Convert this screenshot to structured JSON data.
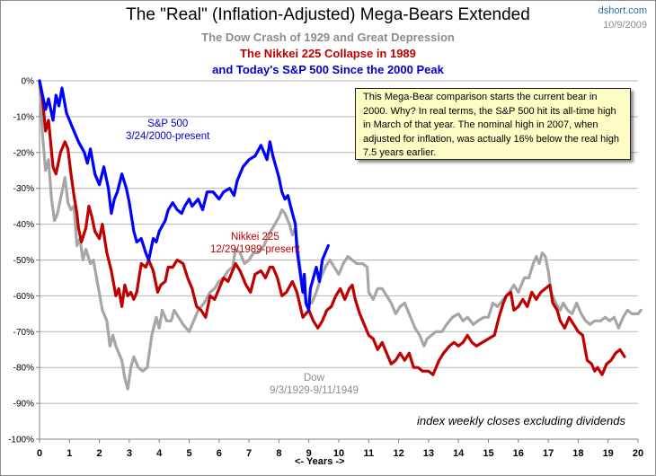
{
  "header": {
    "title": "The \"Real\" (Inflation-Adjusted)  Mega-Bears  Extended",
    "subtitle_dow": "The Dow Crash of 1929 and Great Depression",
    "subtitle_nikkei": "The Nikkei 225  Collapse in 1989",
    "subtitle_sp": "and Today's S&P 500  Since the 2000  Peak",
    "site": "dshort.com",
    "date": "10/9/2009"
  },
  "note": "This Mega-Bear comparison starts  the current bear in 2000.  Why? In real terms, the S&P 500 hit its all-time high in March of that year. The nominal high in 2007, when adjusted for inflation, was actually 16% below the real high 7.5 years earlier.",
  "footnote": "index weekly closes excluding dividends",
  "series_labels": {
    "sp": {
      "name": "S&P 500",
      "range": "3/24/2000-present"
    },
    "nikkei": {
      "name": "Nikkei 225",
      "range": "12/29/1989-present"
    },
    "dow": {
      "name": "Dow",
      "range": "9/3/1929-9/11/1949"
    }
  },
  "chart_data": {
    "type": "line",
    "title": "The \"Real\" (Inflation-Adjusted) Mega-Bears Extended",
    "xlabel": "<- Years ->",
    "ylabel": "",
    "xlim": [
      0,
      20
    ],
    "ylim": [
      -100,
      0
    ],
    "x_ticks": [
      "0",
      "1",
      "2",
      "3",
      "4",
      "5",
      "6",
      "7",
      "8",
      "9",
      "10",
      "11",
      "12",
      "13",
      "14",
      "15",
      "16",
      "17",
      "18",
      "19",
      "20"
    ],
    "y_ticks": [
      "0%",
      "-10%",
      "-20%",
      "-30%",
      "-40%",
      "-50%",
      "-60%",
      "-70%",
      "-80%",
      "-90%",
      "-100%"
    ],
    "grid": true,
    "legend": "none (inline labels)",
    "series": [
      {
        "name": "Dow 9/3/1929-9/11/1949",
        "color": "#a6a6a6",
        "x": [
          0,
          0.1,
          0.2,
          0.3,
          0.4,
          0.5,
          0.6,
          0.75,
          0.85,
          0.95,
          1.05,
          1.15,
          1.25,
          1.35,
          1.45,
          1.55,
          1.7,
          1.8,
          1.95,
          2.1,
          2.25,
          2.35,
          2.45,
          2.55,
          2.65,
          2.75,
          2.85,
          2.95,
          3.05,
          3.15,
          3.3,
          3.45,
          3.6,
          3.75,
          3.9,
          4.0,
          4.1,
          4.25,
          4.4,
          4.5,
          4.65,
          4.8,
          5.0,
          5.15,
          5.3,
          5.5,
          5.7,
          5.85,
          6.0,
          6.15,
          6.3,
          6.45,
          6.55,
          6.7,
          6.85,
          7.0,
          7.15,
          7.3,
          7.5,
          7.65,
          7.8,
          8.0,
          8.1,
          8.2,
          8.35,
          8.45,
          8.55,
          8.65,
          8.8,
          8.95,
          9.1,
          9.25,
          9.4,
          9.55,
          9.7,
          9.85,
          10.0,
          10.15,
          10.3,
          10.45,
          10.6,
          10.8,
          10.95,
          11.0,
          11.15,
          11.3,
          11.45,
          11.6,
          11.75,
          11.9,
          12.05,
          12.2,
          12.35,
          12.55,
          12.7,
          12.85,
          12.95,
          13.1,
          13.25,
          13.45,
          13.6,
          13.8,
          14.0,
          14.15,
          14.3,
          14.5,
          14.65,
          14.85,
          15.0,
          15.15,
          15.3,
          15.5,
          15.7,
          15.85,
          16.0,
          16.2,
          16.35,
          16.5,
          16.6,
          16.7,
          16.8,
          16.9,
          17.0,
          17.1,
          17.25,
          17.4,
          17.5,
          17.65,
          17.8,
          17.95,
          18.1,
          18.25,
          18.4,
          18.55,
          18.75,
          18.9,
          19.05,
          19.2,
          19.35,
          19.5,
          19.65,
          19.8,
          20.0,
          20.1
        ],
        "values": [
          0,
          -15,
          -25,
          -22,
          -33,
          -39,
          -37,
          -31,
          -27,
          -34,
          -36,
          -35,
          -46,
          -44,
          -50,
          -47,
          -51,
          -50,
          -57,
          -64,
          -67,
          -74,
          -71,
          -74,
          -76,
          -78,
          -83,
          -86,
          -80,
          -77,
          -80,
          -81,
          -80,
          -71,
          -66,
          -69,
          -64,
          -67,
          -67,
          -64,
          -66,
          -68,
          -70,
          -67,
          -64,
          -62,
          -59,
          -58,
          -56,
          -55,
          -53,
          -52,
          -47,
          -48,
          -51,
          -50,
          -48,
          -48,
          -46,
          -43,
          -41,
          -38,
          -36,
          -37,
          -40,
          -43,
          -41,
          -48,
          -58,
          -62,
          -62,
          -59,
          -55,
          -52,
          -50,
          -52,
          -54,
          -51,
          -49,
          -50,
          -51,
          -51,
          -52,
          -59,
          -61,
          -58,
          -58,
          -60,
          -62,
          -65,
          -63,
          -62,
          -65,
          -69,
          -71,
          -74,
          -72,
          -71,
          -70,
          -70,
          -68,
          -66,
          -65,
          -67,
          -66,
          -68,
          -67,
          -66,
          -66,
          -62,
          -63,
          -61,
          -59,
          -57,
          -59,
          -55,
          -55,
          -51,
          -49,
          -51,
          -48,
          -49,
          -53,
          -59,
          -62,
          -64,
          -62,
          -64,
          -65,
          -62,
          -65,
          -67,
          -68,
          -67,
          -67,
          -66,
          -67,
          -66,
          -69,
          -66,
          -64,
          -65,
          -65,
          -64
        ]
      },
      {
        "name": "Nikkei 225 12/29/1989-present",
        "color": "#c00000",
        "x": [
          0,
          0.1,
          0.2,
          0.3,
          0.45,
          0.55,
          0.7,
          0.85,
          0.95,
          1.05,
          1.15,
          1.25,
          1.3,
          1.4,
          1.55,
          1.65,
          1.75,
          1.85,
          2.0,
          2.1,
          2.25,
          2.4,
          2.55,
          2.65,
          2.75,
          2.85,
          2.95,
          3.05,
          3.15,
          3.25,
          3.4,
          3.55,
          3.65,
          3.8,
          3.95,
          4.05,
          4.2,
          4.3,
          4.45,
          4.6,
          4.8,
          4.95,
          5.1,
          5.25,
          5.4,
          5.55,
          5.7,
          5.85,
          6.0,
          6.15,
          6.3,
          6.45,
          6.55,
          6.7,
          6.9,
          7.05,
          7.2,
          7.4,
          7.55,
          7.7,
          7.8,
          7.95,
          8.1,
          8.25,
          8.45,
          8.6,
          8.8,
          9.0,
          9.15,
          9.3,
          9.45,
          9.6,
          9.75,
          9.9,
          10.05,
          10.2,
          10.35,
          10.45,
          10.55,
          10.7,
          10.85,
          11.0,
          11.15,
          11.3,
          11.45,
          11.6,
          11.75,
          11.9,
          12.05,
          12.2,
          12.35,
          12.5,
          12.65,
          12.8,
          13.0,
          13.15,
          13.35,
          13.5,
          13.7,
          13.85,
          14.0,
          14.15,
          14.3,
          14.45,
          14.6,
          14.8,
          15.0,
          15.2,
          15.35,
          15.5,
          15.6,
          15.75,
          15.85,
          16.0,
          16.15,
          16.3,
          16.45,
          16.6,
          16.75,
          16.9,
          17.05,
          17.15,
          17.3,
          17.4,
          17.55,
          17.7,
          17.85,
          18.0,
          18.15,
          18.3,
          18.45,
          18.55,
          18.65,
          18.8,
          18.95,
          19.1,
          19.25,
          19.4,
          19.55
        ],
        "values": [
          0,
          -5,
          -14,
          -11,
          -24,
          -26,
          -20,
          -17,
          -19,
          -26,
          -32,
          -37,
          -41,
          -45,
          -41,
          -35,
          -38,
          -42,
          -44,
          -40,
          -48,
          -53,
          -60,
          -58,
          -63,
          -57,
          -60,
          -59,
          -61,
          -59,
          -51,
          -52,
          -50,
          -53,
          -59,
          -57,
          -56,
          -52,
          -52,
          -50,
          -51,
          -55,
          -58,
          -63,
          -64,
          -66,
          -60,
          -61,
          -58,
          -55,
          -56,
          -53,
          -51,
          -53,
          -57,
          -59,
          -54,
          -53,
          -55,
          -52,
          -52,
          -55,
          -60,
          -59,
          -56,
          -59,
          -66,
          -64,
          -67,
          -69,
          -67,
          -64,
          -63,
          -60,
          -58,
          -61,
          -58,
          -57,
          -61,
          -65,
          -68,
          -71,
          -72,
          -75,
          -73,
          -76,
          -79,
          -78,
          -76,
          -78,
          -76,
          -80,
          -80,
          -81,
          -81,
          -82,
          -78,
          -76,
          -74,
          -73,
          -74,
          -73,
          -71,
          -73,
          -74,
          -73,
          -72,
          -71,
          -66,
          -62,
          -60,
          -59,
          -64,
          -63,
          -61,
          -63,
          -59,
          -61,
          -59,
          -58,
          -57,
          -62,
          -64,
          -67,
          -69,
          -66,
          -68,
          -70,
          -71,
          -78,
          -79,
          -81,
          -80,
          -82,
          -79,
          -78,
          -76,
          -75,
          -77
        ]
      },
      {
        "name": "S&P 500 3/24/2000-present",
        "color": "#0000ff",
        "x": [
          0,
          0.2,
          0.3,
          0.45,
          0.55,
          0.65,
          0.75,
          0.9,
          1.1,
          1.3,
          1.5,
          1.6,
          1.7,
          1.85,
          2.0,
          2.15,
          2.3,
          2.4,
          2.5,
          2.6,
          2.75,
          2.9,
          3.0,
          3.15,
          3.25,
          3.4,
          3.55,
          3.65,
          3.8,
          3.9,
          4.0,
          4.2,
          4.3,
          4.45,
          4.6,
          4.75,
          4.85,
          5.0,
          5.1,
          5.3,
          5.45,
          5.6,
          5.8,
          6.0,
          6.15,
          6.35,
          6.5,
          6.6,
          6.8,
          7.0,
          7.2,
          7.4,
          7.5,
          7.6,
          7.7,
          7.8,
          7.9,
          8.0,
          8.1,
          8.2,
          8.3,
          8.45,
          8.55,
          8.6,
          8.7,
          8.8,
          8.85,
          8.9,
          9.0,
          9.05,
          9.15,
          9.25,
          9.35,
          9.45,
          9.55,
          9.65
        ],
        "values": [
          0,
          -8,
          -5,
          -11,
          -4,
          -7,
          -2,
          -9,
          -13,
          -17,
          -20,
          -23,
          -19,
          -26,
          -29,
          -24,
          -30,
          -37,
          -33,
          -31,
          -26,
          -30,
          -34,
          -42,
          -45,
          -44,
          -48,
          -50,
          -44,
          -45,
          -42,
          -39,
          -36,
          -34,
          -36,
          -37,
          -35,
          -33,
          -35,
          -33,
          -36,
          -31,
          -31,
          -33,
          -31,
          -30,
          -32,
          -28,
          -24,
          -22,
          -21,
          -18,
          -20,
          -22,
          -17,
          -21,
          -24,
          -27,
          -31,
          -33,
          -32,
          -37,
          -40,
          -47,
          -53,
          -59,
          -54,
          -62,
          -64,
          -58,
          -55,
          -52,
          -56,
          -50,
          -48,
          -46
        ]
      }
    ]
  }
}
